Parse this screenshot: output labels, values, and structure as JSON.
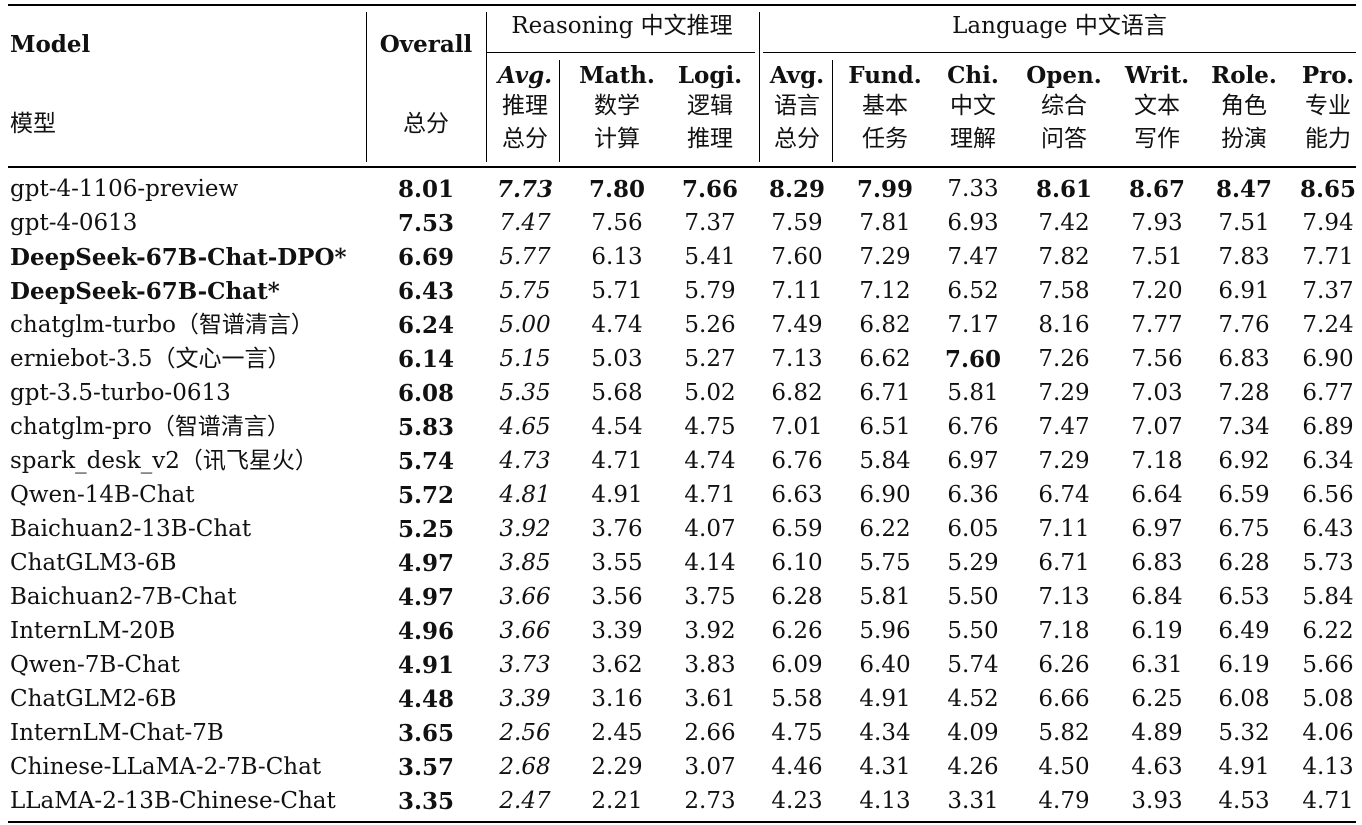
{
  "header": {
    "model_en": "Model",
    "model_zh": "模型",
    "overall_en": "Overall",
    "overall_zh": "总分",
    "reasoning_group": "Reasoning 中文推理",
    "language_group": "Language 中文语言",
    "subcolumns": [
      {
        "en": "Avg.",
        "zh1": "推理",
        "zh2": "总分",
        "italic": true
      },
      {
        "en": "Math.",
        "zh1": "数学",
        "zh2": "计算",
        "italic": false
      },
      {
        "en": "Logi.",
        "zh1": "逻辑",
        "zh2": "推理",
        "italic": false
      },
      {
        "en": "Avg.",
        "zh1": "语言",
        "zh2": "总分",
        "italic": false
      },
      {
        "en": "Fund.",
        "zh1": "基本",
        "zh2": "任务",
        "italic": false
      },
      {
        "en": "Chi.",
        "zh1": "中文",
        "zh2": "理解",
        "italic": false
      },
      {
        "en": "Open.",
        "zh1": "综合",
        "zh2": "问答",
        "italic": false
      },
      {
        "en": "Writ.",
        "zh1": "文本",
        "zh2": "写作",
        "italic": false
      },
      {
        "en": "Role.",
        "zh1": "角色",
        "zh2": "扮演",
        "italic": false
      },
      {
        "en": "Pro.",
        "zh1": "专业",
        "zh2": "能力",
        "italic": false
      }
    ]
  },
  "rows": [
    {
      "model": "gpt-4-1106-preview",
      "model_bold": false,
      "overall": "8.01",
      "vals": [
        "7.73",
        "7.80",
        "7.66",
        "8.29",
        "7.99",
        "7.33",
        "8.61",
        "8.67",
        "8.47",
        "8.65"
      ],
      "bold": [
        true,
        true,
        true,
        true,
        true,
        false,
        true,
        true,
        true,
        true
      ]
    },
    {
      "model": "gpt-4-0613",
      "model_bold": false,
      "overall": "7.53",
      "vals": [
        "7.47",
        "7.56",
        "7.37",
        "7.59",
        "7.81",
        "6.93",
        "7.42",
        "7.93",
        "7.51",
        "7.94"
      ],
      "bold": [
        false,
        false,
        false,
        false,
        false,
        false,
        false,
        false,
        false,
        false
      ]
    },
    {
      "model": "DeepSeek-67B-Chat-DPO*",
      "model_bold": true,
      "overall": "6.69",
      "vals": [
        "5.77",
        "6.13",
        "5.41",
        "7.60",
        "7.29",
        "7.47",
        "7.82",
        "7.51",
        "7.83",
        "7.71"
      ],
      "bold": [
        false,
        false,
        false,
        false,
        false,
        false,
        false,
        false,
        false,
        false
      ]
    },
    {
      "model": "DeepSeek-67B-Chat*",
      "model_bold": true,
      "overall": "6.43",
      "vals": [
        "5.75",
        "5.71",
        "5.79",
        "7.11",
        "7.12",
        "6.52",
        "7.58",
        "7.20",
        "6.91",
        "7.37"
      ],
      "bold": [
        false,
        false,
        false,
        false,
        false,
        false,
        false,
        false,
        false,
        false
      ]
    },
    {
      "model": "chatglm-turbo（智谱清言）",
      "model_bold": false,
      "overall": "6.24",
      "vals": [
        "5.00",
        "4.74",
        "5.26",
        "7.49",
        "6.82",
        "7.17",
        "8.16",
        "7.77",
        "7.76",
        "7.24"
      ],
      "bold": [
        false,
        false,
        false,
        false,
        false,
        false,
        false,
        false,
        false,
        false
      ]
    },
    {
      "model": "erniebot-3.5（文心一言）",
      "model_bold": false,
      "overall": "6.14",
      "vals": [
        "5.15",
        "5.03",
        "5.27",
        "7.13",
        "6.62",
        "7.60",
        "7.26",
        "7.56",
        "6.83",
        "6.90"
      ],
      "bold": [
        false,
        false,
        false,
        false,
        false,
        true,
        false,
        false,
        false,
        false
      ]
    },
    {
      "model": "gpt-3.5-turbo-0613",
      "model_bold": false,
      "overall": "6.08",
      "vals": [
        "5.35",
        "5.68",
        "5.02",
        "6.82",
        "6.71",
        "5.81",
        "7.29",
        "7.03",
        "7.28",
        "6.77"
      ],
      "bold": [
        false,
        false,
        false,
        false,
        false,
        false,
        false,
        false,
        false,
        false
      ]
    },
    {
      "model": "chatglm-pro（智谱清言）",
      "model_bold": false,
      "overall": "5.83",
      "vals": [
        "4.65",
        "4.54",
        "4.75",
        "7.01",
        "6.51",
        "6.76",
        "7.47",
        "7.07",
        "7.34",
        "6.89"
      ],
      "bold": [
        false,
        false,
        false,
        false,
        false,
        false,
        false,
        false,
        false,
        false
      ]
    },
    {
      "model": "spark_desk_v2（讯飞星火）",
      "model_bold": false,
      "overall": "5.74",
      "vals": [
        "4.73",
        "4.71",
        "4.74",
        "6.76",
        "5.84",
        "6.97",
        "7.29",
        "7.18",
        "6.92",
        "6.34"
      ],
      "bold": [
        false,
        false,
        false,
        false,
        false,
        false,
        false,
        false,
        false,
        false
      ]
    },
    {
      "model": "Qwen-14B-Chat",
      "model_bold": false,
      "overall": "5.72",
      "vals": [
        "4.81",
        "4.91",
        "4.71",
        "6.63",
        "6.90",
        "6.36",
        "6.74",
        "6.64",
        "6.59",
        "6.56"
      ],
      "bold": [
        false,
        false,
        false,
        false,
        false,
        false,
        false,
        false,
        false,
        false
      ]
    },
    {
      "model": "Baichuan2-13B-Chat",
      "model_bold": false,
      "overall": "5.25",
      "vals": [
        "3.92",
        "3.76",
        "4.07",
        "6.59",
        "6.22",
        "6.05",
        "7.11",
        "6.97",
        "6.75",
        "6.43"
      ],
      "bold": [
        false,
        false,
        false,
        false,
        false,
        false,
        false,
        false,
        false,
        false
      ]
    },
    {
      "model": "ChatGLM3-6B",
      "model_bold": false,
      "overall": "4.97",
      "vals": [
        "3.85",
        "3.55",
        "4.14",
        "6.10",
        "5.75",
        "5.29",
        "6.71",
        "6.83",
        "6.28",
        "5.73"
      ],
      "bold": [
        false,
        false,
        false,
        false,
        false,
        false,
        false,
        false,
        false,
        false
      ]
    },
    {
      "model": "Baichuan2-7B-Chat",
      "model_bold": false,
      "overall": "4.97",
      "vals": [
        "3.66",
        "3.56",
        "3.75",
        "6.28",
        "5.81",
        "5.50",
        "7.13",
        "6.84",
        "6.53",
        "5.84"
      ],
      "bold": [
        false,
        false,
        false,
        false,
        false,
        false,
        false,
        false,
        false,
        false
      ]
    },
    {
      "model": "InternLM-20B",
      "model_bold": false,
      "overall": "4.96",
      "vals": [
        "3.66",
        "3.39",
        "3.92",
        "6.26",
        "5.96",
        "5.50",
        "7.18",
        "6.19",
        "6.49",
        "6.22"
      ],
      "bold": [
        false,
        false,
        false,
        false,
        false,
        false,
        false,
        false,
        false,
        false
      ]
    },
    {
      "model": "Qwen-7B-Chat",
      "model_bold": false,
      "overall": "4.91",
      "vals": [
        "3.73",
        "3.62",
        "3.83",
        "6.09",
        "6.40",
        "5.74",
        "6.26",
        "6.31",
        "6.19",
        "5.66"
      ],
      "bold": [
        false,
        false,
        false,
        false,
        false,
        false,
        false,
        false,
        false,
        false
      ]
    },
    {
      "model": "ChatGLM2-6B",
      "model_bold": false,
      "overall": "4.48",
      "vals": [
        "3.39",
        "3.16",
        "3.61",
        "5.58",
        "4.91",
        "4.52",
        "6.66",
        "6.25",
        "6.08",
        "5.08"
      ],
      "bold": [
        false,
        false,
        false,
        false,
        false,
        false,
        false,
        false,
        false,
        false
      ]
    },
    {
      "model": "InternLM-Chat-7B",
      "model_bold": false,
      "overall": "3.65",
      "vals": [
        "2.56",
        "2.45",
        "2.66",
        "4.75",
        "4.34",
        "4.09",
        "5.82",
        "4.89",
        "5.32",
        "4.06"
      ],
      "bold": [
        false,
        false,
        false,
        false,
        false,
        false,
        false,
        false,
        false,
        false
      ]
    },
    {
      "model": "Chinese-LLaMA-2-7B-Chat",
      "model_bold": false,
      "overall": "3.57",
      "vals": [
        "2.68",
        "2.29",
        "3.07",
        "4.46",
        "4.31",
        "4.26",
        "4.50",
        "4.63",
        "4.91",
        "4.13"
      ],
      "bold": [
        false,
        false,
        false,
        false,
        false,
        false,
        false,
        false,
        false,
        false
      ]
    },
    {
      "model": "LLaMA-2-13B-Chinese-Chat",
      "model_bold": false,
      "overall": "3.35",
      "vals": [
        "2.47",
        "2.21",
        "2.73",
        "4.23",
        "4.13",
        "3.31",
        "4.79",
        "3.93",
        "4.53",
        "4.71"
      ],
      "bold": [
        false,
        false,
        false,
        false,
        false,
        false,
        false,
        false,
        false,
        false
      ]
    }
  ]
}
